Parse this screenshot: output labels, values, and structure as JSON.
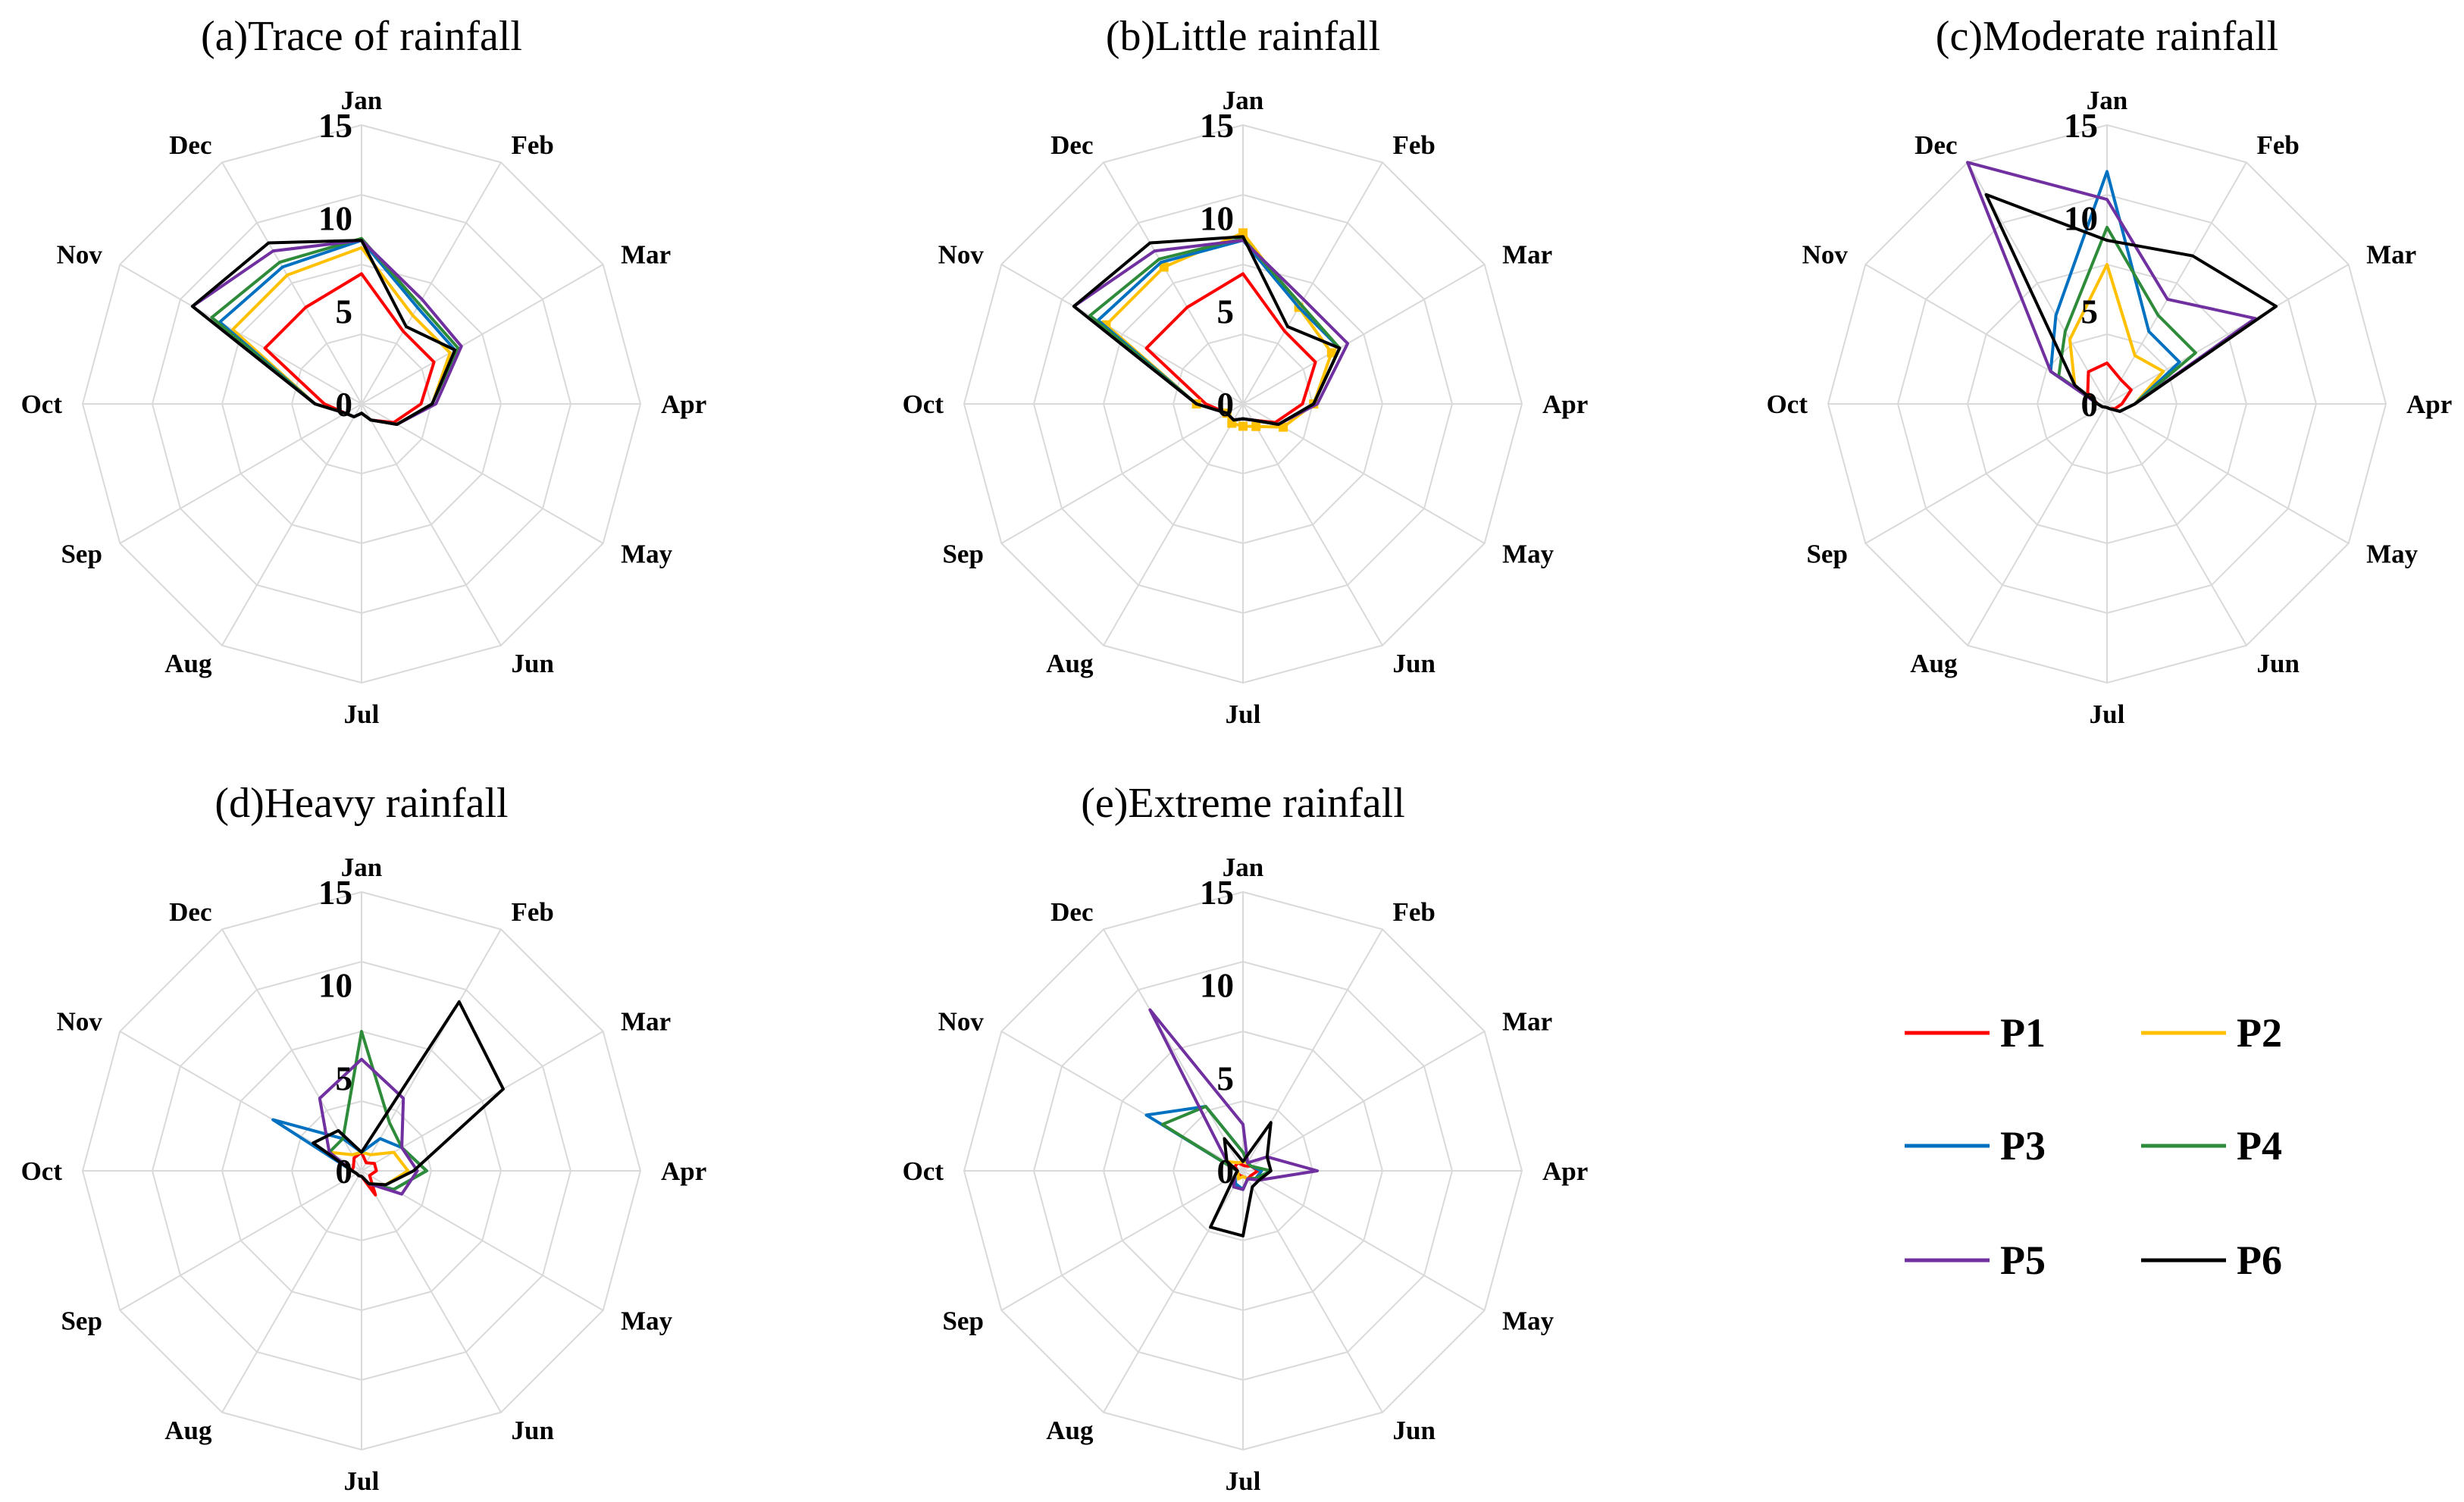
{
  "legend": [
    {
      "name": "P1",
      "color": "#ff0000"
    },
    {
      "name": "P2",
      "color": "#ffc000"
    },
    {
      "name": "P3",
      "color": "#0070c0"
    },
    {
      "name": "P4",
      "color": "#2e8b3a"
    },
    {
      "name": "P5",
      "color": "#7030a0"
    },
    {
      "name": "P6",
      "color": "#000000"
    }
  ],
  "chart_data": [
    {
      "type": "radar",
      "title": "(a)Trace of rainfall",
      "categories": [
        "Jan",
        "Feb",
        "Mar",
        "Apr",
        "May",
        "Jun",
        "Jul",
        "Aug",
        "Sep",
        "Oct",
        "Nov",
        "Dec"
      ],
      "rticks": [
        "0",
        "5",
        "10",
        "15"
      ],
      "rlim": [
        0,
        15
      ],
      "series": [
        {
          "name": "P1",
          "values": [
            7.0,
            4.5,
            4.5,
            3.2,
            2.0,
            1.0,
            0.5,
            0.8,
            1.0,
            2.0,
            6.0,
            6.0
          ]
        },
        {
          "name": "P2",
          "values": [
            8.4,
            5.5,
            5.5,
            3.8,
            2.2,
            1.0,
            0.5,
            0.8,
            1.0,
            2.5,
            8.0,
            8.0
          ]
        },
        {
          "name": "P3",
          "values": [
            8.8,
            6.0,
            5.8,
            3.8,
            2.2,
            1.0,
            0.5,
            0.8,
            1.0,
            2.5,
            8.8,
            8.5
          ]
        },
        {
          "name": "P4",
          "values": [
            8.9,
            6.2,
            6.0,
            3.8,
            2.2,
            1.0,
            0.5,
            0.8,
            1.0,
            2.5,
            9.3,
            8.8
          ]
        },
        {
          "name": "P5",
          "values": [
            8.8,
            6.5,
            6.2,
            4.0,
            2.2,
            1.0,
            0.5,
            0.8,
            1.0,
            2.5,
            10.5,
            9.5
          ]
        },
        {
          "name": "P6",
          "values": [
            8.8,
            4.8,
            5.8,
            3.8,
            2.2,
            1.0,
            0.5,
            0.8,
            1.0,
            2.5,
            10.5,
            10.0
          ]
        }
      ]
    },
    {
      "type": "radar",
      "title": "(b)Little rainfall",
      "categories": [
        "Jan",
        "Feb",
        "Mar",
        "Apr",
        "May",
        "Jun",
        "Jul",
        "Aug",
        "Sep",
        "Oct",
        "Nov",
        "Dec"
      ],
      "rticks": [
        "0",
        "5",
        "10",
        "15"
      ],
      "rlim": [
        0,
        15
      ],
      "series": [
        {
          "name": "P1",
          "values": [
            7.0,
            4.5,
            4.5,
            3.2,
            2.0,
            1.0,
            0.8,
            1.0,
            1.0,
            2.0,
            6.0,
            6.0
          ]
        },
        {
          "name": "P2",
          "values": [
            9.2,
            6.0,
            5.5,
            3.8,
            2.5,
            1.4,
            1.2,
            1.2,
            1.0,
            2.5,
            8.5,
            8.5
          ]
        },
        {
          "name": "P3",
          "values": [
            8.8,
            6.0,
            6.0,
            3.8,
            2.2,
            1.0,
            0.8,
            1.0,
            1.0,
            2.5,
            9.0,
            8.8
          ]
        },
        {
          "name": "P4",
          "values": [
            8.9,
            6.2,
            6.0,
            3.8,
            2.2,
            1.0,
            0.8,
            1.0,
            1.0,
            2.5,
            9.5,
            9.0
          ]
        },
        {
          "name": "P5",
          "values": [
            8.8,
            6.5,
            6.5,
            4.0,
            2.2,
            1.0,
            0.8,
            1.0,
            1.0,
            2.5,
            10.5,
            9.5
          ]
        },
        {
          "name": "P6",
          "values": [
            9.0,
            4.8,
            6.0,
            3.8,
            2.2,
            1.0,
            0.8,
            1.0,
            1.0,
            2.5,
            10.5,
            10.0
          ]
        }
      ]
    },
    {
      "type": "radar",
      "title": "(c)Moderate rainfall",
      "categories": [
        "Jan",
        "Feb",
        "Mar",
        "Apr",
        "May",
        "Jun",
        "Jul",
        "Aug",
        "Sep",
        "Oct",
        "Nov",
        "Dec"
      ],
      "rticks": [
        "0",
        "5",
        "10",
        "15"
      ],
      "rlim": [
        0,
        15
      ],
      "series": [
        {
          "name": "P1",
          "values": [
            2.2,
            1.5,
            1.5,
            0.8,
            0.5,
            0.3,
            0.2,
            0.2,
            0.3,
            0.5,
            1.2,
            2.0
          ]
        },
        {
          "name": "P2",
          "values": [
            7.5,
            3.0,
            3.5,
            1.5,
            0.8,
            0.3,
            0.2,
            0.2,
            0.3,
            0.5,
            2.0,
            4.0
          ]
        },
        {
          "name": "P3",
          "values": [
            12.5,
            4.5,
            4.5,
            1.5,
            0.8,
            0.3,
            0.2,
            0.2,
            0.3,
            0.5,
            3.5,
            5.5
          ]
        },
        {
          "name": "P4",
          "values": [
            9.5,
            5.5,
            5.5,
            1.5,
            0.8,
            0.3,
            0.2,
            0.2,
            0.3,
            0.5,
            3.0,
            4.5
          ]
        },
        {
          "name": "P5",
          "values": [
            11.0,
            6.5,
            9.2,
            1.5,
            0.8,
            0.3,
            0.2,
            0.2,
            0.3,
            0.5,
            3.5,
            15.0
          ]
        },
        {
          "name": "P6",
          "values": [
            8.8,
            9.2,
            10.5,
            1.5,
            0.8,
            0.3,
            0.2,
            0.2,
            0.3,
            0.5,
            2.0,
            13.0
          ]
        }
      ]
    },
    {
      "type": "radar",
      "title": "(d)Heavy rainfall",
      "categories": [
        "Jan",
        "Feb",
        "Mar",
        "Apr",
        "May",
        "Jun",
        "Jul",
        "Aug",
        "Sep",
        "Oct",
        "Nov",
        "Dec"
      ],
      "rticks": [
        "0",
        "5",
        "10",
        "15"
      ],
      "rlim": [
        0,
        15
      ],
      "series": [
        {
          "name": "P1",
          "values": [
            1.0,
            0.5,
            0.8,
            0.8,
            0.5,
            1.5,
            0.3,
            0.3,
            0.3,
            0.5,
            0.5,
            0.8
          ]
        },
        {
          "name": "P2",
          "values": [
            1.0,
            1.0,
            2.0,
            2.5,
            1.5,
            0.8,
            0.3,
            0.3,
            0.3,
            0.5,
            2.0,
            1.0
          ]
        },
        {
          "name": "P3",
          "values": [
            1.0,
            2.0,
            2.5,
            3.5,
            2.0,
            0.8,
            0.3,
            0.3,
            0.3,
            0.5,
            5.5,
            2.0
          ]
        },
        {
          "name": "P4",
          "values": [
            7.5,
            3.0,
            2.5,
            3.5,
            2.0,
            0.8,
            0.3,
            0.3,
            0.3,
            0.5,
            2.0,
            2.0
          ]
        },
        {
          "name": "P5",
          "values": [
            6.0,
            4.5,
            2.5,
            3.0,
            2.5,
            0.8,
            0.3,
            0.3,
            0.3,
            0.5,
            2.0,
            4.5
          ]
        },
        {
          "name": "P6",
          "values": [
            1.0,
            10.5,
            8.8,
            2.8,
            1.5,
            0.8,
            0.3,
            0.3,
            0.3,
            0.5,
            3.0,
            2.5
          ]
        }
      ]
    },
    {
      "type": "radar",
      "title": "(e)Extreme rainfall",
      "categories": [
        "Jan",
        "Feb",
        "Mar",
        "Apr",
        "May",
        "Jun",
        "Jul",
        "Aug",
        "Sep",
        "Oct",
        "Nov",
        "Dec"
      ],
      "rticks": [
        "0",
        "5",
        "10",
        "15"
      ],
      "rlim": [
        0,
        15
      ],
      "series": [
        {
          "name": "P1",
          "values": [
            0.3,
            0.3,
            0.5,
            0.8,
            0.5,
            0.5,
            0.3,
            0.3,
            0.3,
            0.3,
            0.5,
            0.5
          ]
        },
        {
          "name": "P2",
          "values": [
            0.5,
            0.5,
            0.5,
            1.0,
            0.8,
            0.5,
            0.3,
            0.5,
            0.3,
            0.3,
            1.0,
            0.5
          ]
        },
        {
          "name": "P3",
          "values": [
            1.0,
            0.5,
            0.5,
            1.0,
            0.8,
            0.5,
            1.0,
            0.8,
            0.5,
            0.3,
            6.0,
            4.0
          ]
        },
        {
          "name": "P4",
          "values": [
            1.0,
            0.5,
            0.5,
            1.5,
            0.8,
            0.5,
            1.0,
            1.0,
            0.5,
            0.3,
            5.0,
            4.0
          ]
        },
        {
          "name": "P5",
          "values": [
            2.5,
            0.5,
            1.5,
            4.0,
            1.0,
            0.5,
            1.0,
            1.0,
            0.5,
            0.3,
            1.0,
            10.0
          ]
        },
        {
          "name": "P6",
          "values": [
            0.5,
            3.0,
            1.5,
            1.5,
            1.0,
            1.0,
            3.5,
            3.5,
            0.5,
            0.3,
            1.0,
            2.0
          ]
        }
      ]
    }
  ]
}
